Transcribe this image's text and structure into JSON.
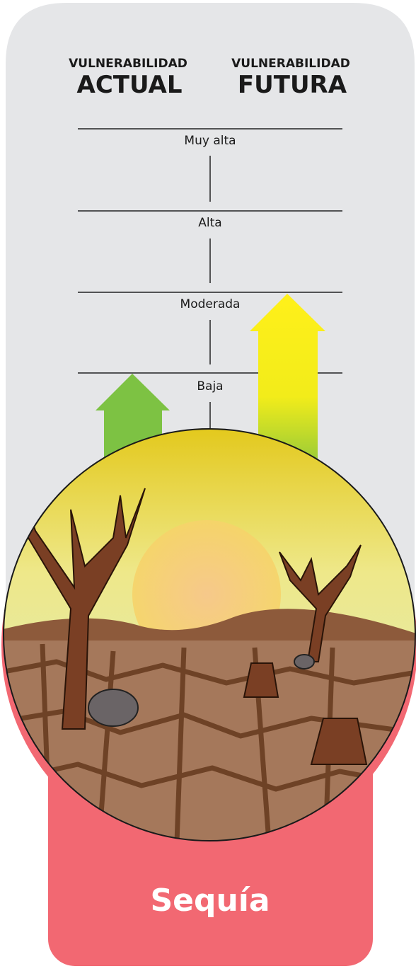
{
  "header": {
    "current": {
      "small": "VULNERABILIDAD",
      "large": "ACTUAL"
    },
    "future": {
      "small": "VULNERABILIDAD",
      "large": "FUTURA"
    }
  },
  "levels": [
    "Muy alta",
    "Alta",
    "Moderada",
    "Baja"
  ],
  "title": "Sequía"
}
